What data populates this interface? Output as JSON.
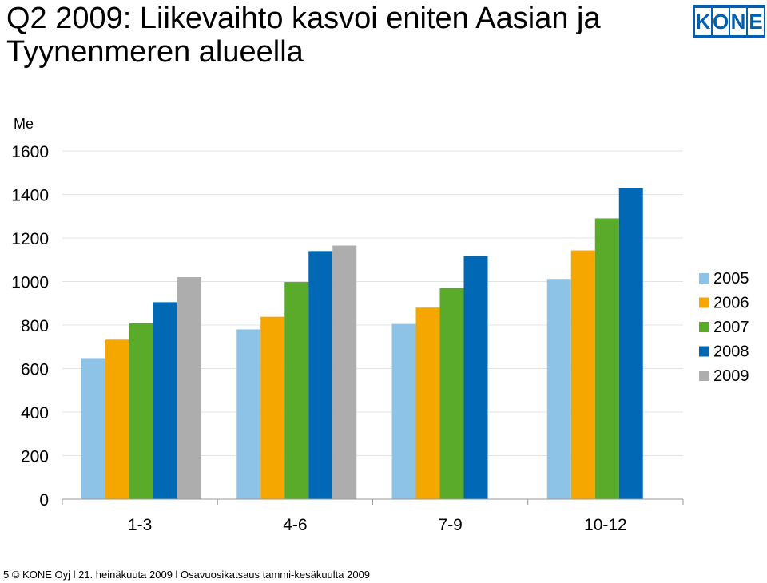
{
  "header": {
    "title_line1": "Q2 2009: Liikevaihto kasvoi eniten Aasian ja",
    "title_line2": "Tyynenmeren alueella"
  },
  "logo": {
    "letters": [
      "K",
      "O",
      "N",
      "E"
    ],
    "color": "#005fae"
  },
  "chart_data": {
    "type": "bar",
    "title": "",
    "xlabel": "",
    "ylabel": "Me",
    "ylim": [
      0,
      1600
    ],
    "yticks": [
      0,
      200,
      400,
      600,
      800,
      1000,
      1200,
      1400,
      1600
    ],
    "grid": true,
    "legend_position": "right",
    "categories": [
      "1-3",
      "4-6",
      "7-9",
      "10-12"
    ],
    "series": [
      {
        "name": "2005",
        "color": "#8dc3e6",
        "values": [
          648,
          780,
          805,
          1012
        ]
      },
      {
        "name": "2006",
        "color": "#f5a700",
        "values": [
          733,
          838,
          880,
          1143
        ]
      },
      {
        "name": "2007",
        "color": "#5aab2a",
        "values": [
          808,
          998,
          970,
          1290
        ]
      },
      {
        "name": "2008",
        "color": "#0068b4",
        "values": [
          905,
          1140,
          1118,
          1428
        ]
      },
      {
        "name": "2009",
        "color": "#adadad",
        "values": [
          1020,
          1165,
          null,
          null
        ]
      }
    ]
  },
  "footer": {
    "text": "5 © KONE Oyj l 21. heinäkuuta 2009 l Osavuosikatsaus tammi-kesäkuulta 2009"
  }
}
